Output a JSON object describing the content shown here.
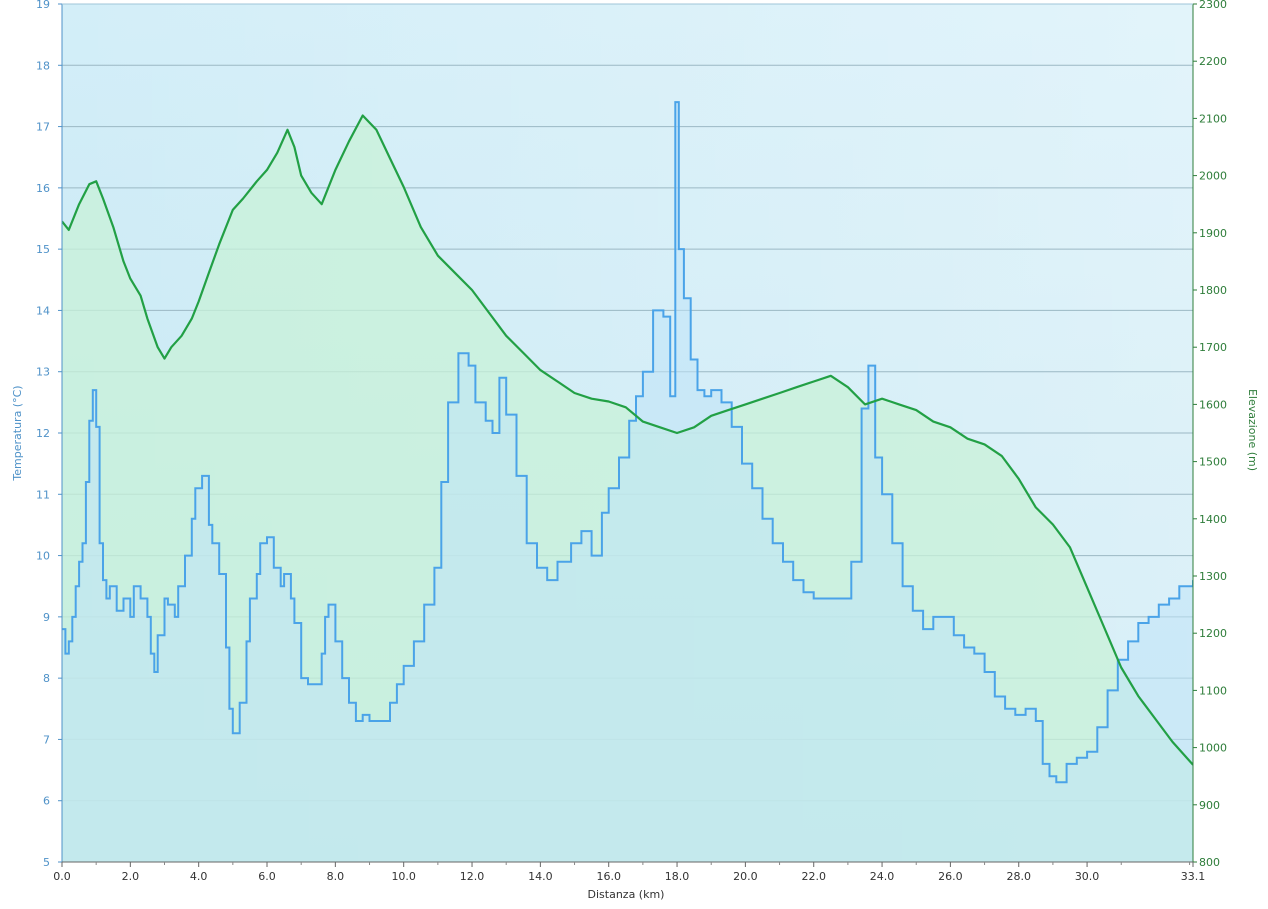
{
  "chart_data": {
    "type": "area",
    "xlabel": "Distanza  (km)",
    "ylabel_left": "Temperatura (°C)",
    "ylabel_right": "Elevazione (m)",
    "xlim": [
      0,
      33.1
    ],
    "ylim_left": [
      5,
      19
    ],
    "ylim_right": [
      800,
      2300
    ],
    "x_ticks": [
      "0.0",
      "2.0",
      "4.0",
      "6.0",
      "8.0",
      "10.0",
      "12.0",
      "14.0",
      "16.0",
      "18.0",
      "20.0",
      "22.0",
      "24.0",
      "26.0",
      "28.0",
      "30.0",
      "33.1"
    ],
    "x_tick_values": [
      0,
      2,
      4,
      6,
      8,
      10,
      12,
      14,
      16,
      18,
      20,
      22,
      24,
      26,
      28,
      30,
      33.1
    ],
    "y_ticks_left": [
      "5",
      "6",
      "7",
      "8",
      "9",
      "10",
      "11",
      "12",
      "13",
      "14",
      "15",
      "16",
      "17",
      "18",
      "19"
    ],
    "y_ticks_right": [
      "800",
      "900",
      "1000",
      "1100",
      "1200",
      "1300",
      "1400",
      "1500",
      "1600",
      "1700",
      "1800",
      "1900",
      "2000",
      "2100",
      "2200",
      "2300"
    ],
    "grid": true,
    "series": [
      {
        "name": "Temperatura",
        "axis": "left",
        "color": "#4aa3e8",
        "fill": "#bfe3f8",
        "x": [
          0,
          0.1,
          0.2,
          0.3,
          0.4,
          0.5,
          0.6,
          0.7,
          0.8,
          0.9,
          1.0,
          1.1,
          1.2,
          1.3,
          1.4,
          1.6,
          1.8,
          2.0,
          2.1,
          2.3,
          2.5,
          2.6,
          2.7,
          2.8,
          3.0,
          3.1,
          3.3,
          3.4,
          3.6,
          3.8,
          3.9,
          4.1,
          4.3,
          4.4,
          4.6,
          4.8,
          4.9,
          5.0,
          5.2,
          5.4,
          5.5,
          5.7,
          5.8,
          6.0,
          6.2,
          6.4,
          6.5,
          6.7,
          6.8,
          7.0,
          7.2,
          7.4,
          7.6,
          7.7,
          7.8,
          8.0,
          8.2,
          8.4,
          8.6,
          8.8,
          9.0,
          9.3,
          9.6,
          9.8,
          10.0,
          10.3,
          10.6,
          10.9,
          11.1,
          11.3,
          11.6,
          11.9,
          12.1,
          12.4,
          12.6,
          12.8,
          13.0,
          13.3,
          13.6,
          13.9,
          14.2,
          14.5,
          14.9,
          15.2,
          15.5,
          15.8,
          16.0,
          16.3,
          16.6,
          16.8,
          17.0,
          17.3,
          17.6,
          17.8,
          17.95,
          18.05,
          18.2,
          18.4,
          18.6,
          18.8,
          19.0,
          19.3,
          19.6,
          19.9,
          20.2,
          20.5,
          20.8,
          21.1,
          21.4,
          21.7,
          22.0,
          22.4,
          22.8,
          23.1,
          23.4,
          23.6,
          23.8,
          24.0,
          24.3,
          24.6,
          24.9,
          25.2,
          25.5,
          25.8,
          26.1,
          26.4,
          26.7,
          27.0,
          27.3,
          27.6,
          27.9,
          28.2,
          28.5,
          28.7,
          28.9,
          29.1,
          29.4,
          29.7,
          30.0,
          30.3,
          30.6,
          30.9,
          31.2,
          31.5,
          31.8,
          32.1,
          32.4,
          32.7,
          33.1
        ],
        "y": [
          8.8,
          8.4,
          8.6,
          9.0,
          9.5,
          9.9,
          10.2,
          11.2,
          12.2,
          12.7,
          12.1,
          10.2,
          9.6,
          9.3,
          9.5,
          9.1,
          9.3,
          9.0,
          9.5,
          9.3,
          9.0,
          8.4,
          8.1,
          8.7,
          9.3,
          9.2,
          9.0,
          9.5,
          10.0,
          10.6,
          11.1,
          11.3,
          10.5,
          10.2,
          9.7,
          8.5,
          7.5,
          7.1,
          7.6,
          8.6,
          9.3,
          9.7,
          10.2,
          10.3,
          9.8,
          9.5,
          9.7,
          9.3,
          8.9,
          8.0,
          7.9,
          7.9,
          8.4,
          9.0,
          9.2,
          8.6,
          8.0,
          7.6,
          7.3,
          7.4,
          7.3,
          7.3,
          7.6,
          7.9,
          8.2,
          8.6,
          9.2,
          9.8,
          11.2,
          12.5,
          13.3,
          13.1,
          12.5,
          12.2,
          12.0,
          12.9,
          12.3,
          11.3,
          10.2,
          9.8,
          9.6,
          9.9,
          10.2,
          10.4,
          10.0,
          10.7,
          11.1,
          11.6,
          12.2,
          12.6,
          13.0,
          14.0,
          13.9,
          12.6,
          17.4,
          15.0,
          14.2,
          13.2,
          12.7,
          12.6,
          12.7,
          12.5,
          12.1,
          11.5,
          11.1,
          10.6,
          10.2,
          9.9,
          9.6,
          9.4,
          9.3,
          9.3,
          9.3,
          9.9,
          12.4,
          13.1,
          11.6,
          11.0,
          10.2,
          9.5,
          9.1,
          8.8,
          9.0,
          9.0,
          8.7,
          8.5,
          8.4,
          8.1,
          7.7,
          7.5,
          7.4,
          7.5,
          7.3,
          6.6,
          6.4,
          6.3,
          6.6,
          6.7,
          6.8,
          7.2,
          7.8,
          8.3,
          8.6,
          8.9,
          9.0,
          9.2,
          9.3,
          9.5,
          9.6
        ]
      },
      {
        "name": "Elevazione",
        "axis": "right",
        "color": "#22a045",
        "fill": "#c8f2d8",
        "x": [
          0,
          0.2,
          0.5,
          0.8,
          1.0,
          1.2,
          1.5,
          1.8,
          2.0,
          2.3,
          2.5,
          2.8,
          3.0,
          3.2,
          3.5,
          3.8,
          4.0,
          4.3,
          4.6,
          5.0,
          5.3,
          5.7,
          6.0,
          6.3,
          6.6,
          6.8,
          7.0,
          7.3,
          7.6,
          8.0,
          8.4,
          8.8,
          9.2,
          9.6,
          10.0,
          10.5,
          11.0,
          11.5,
          12.0,
          12.5,
          13.0,
          13.5,
          14.0,
          14.5,
          15.0,
          15.5,
          16.0,
          16.5,
          17.0,
          17.5,
          18.0,
          18.5,
          19.0,
          19.5,
          20.0,
          20.5,
          21.0,
          21.5,
          22.0,
          22.5,
          23.0,
          23.5,
          24.0,
          24.5,
          25.0,
          25.5,
          26.0,
          26.5,
          27.0,
          27.5,
          28.0,
          28.5,
          29.0,
          29.5,
          30.0,
          30.5,
          31.0,
          31.5,
          32.0,
          32.5,
          33.1
        ],
        "y": [
          1920,
          1905,
          1950,
          1985,
          1990,
          1960,
          1910,
          1850,
          1820,
          1790,
          1750,
          1700,
          1680,
          1700,
          1720,
          1750,
          1780,
          1830,
          1880,
          1940,
          1960,
          1990,
          2010,
          2040,
          2080,
          2050,
          2000,
          1970,
          1950,
          2010,
          2060,
          2105,
          2080,
          2030,
          1980,
          1910,
          1860,
          1830,
          1800,
          1760,
          1720,
          1690,
          1660,
          1640,
          1620,
          1610,
          1605,
          1595,
          1570,
          1560,
          1550,
          1560,
          1580,
          1590,
          1600,
          1610,
          1620,
          1630,
          1640,
          1650,
          1630,
          1600,
          1610,
          1600,
          1590,
          1570,
          1560,
          1540,
          1530,
          1510,
          1470,
          1420,
          1390,
          1350,
          1280,
          1210,
          1140,
          1090,
          1050,
          1010,
          970
        ]
      }
    ]
  }
}
